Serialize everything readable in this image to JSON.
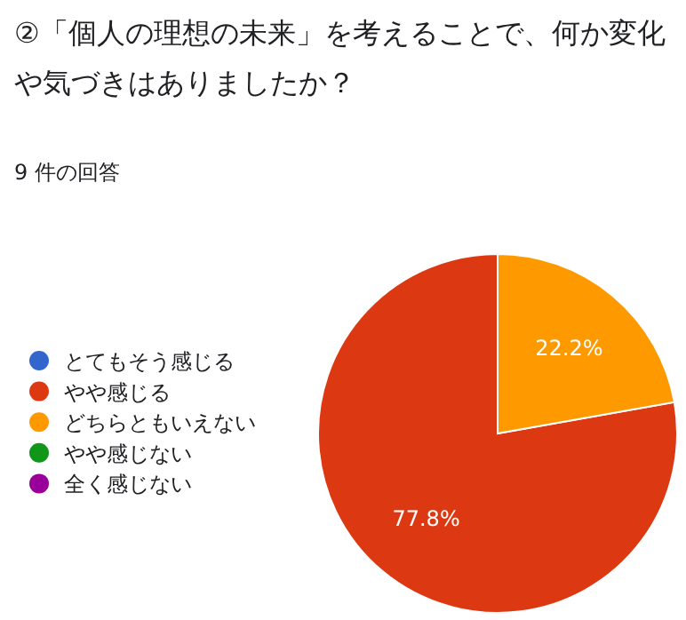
{
  "chart_data": {
    "type": "pie",
    "title": "②「個人の理想の未来」を考えることで、何か変化や気づきはありましたか？",
    "subtitle": "9 件の回答",
    "categories": [
      "とてもそう感じる",
      "やや感じる",
      "どちらともいえない",
      "やや感じない",
      "全く感じない"
    ],
    "values": [
      0,
      77.8,
      22.2,
      0,
      0
    ],
    "colors": [
      "#3366cc",
      "#dc3912",
      "#ff9900",
      "#109618",
      "#990099"
    ],
    "value_labels": [
      null,
      "77.8%",
      "22.2%",
      null,
      null
    ],
    "legend": "left"
  }
}
